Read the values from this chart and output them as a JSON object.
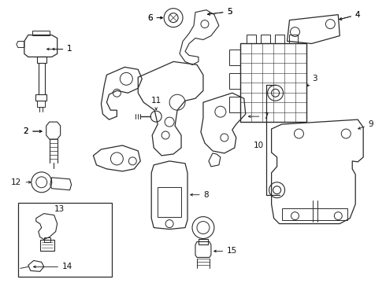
{
  "bg_color": "#ffffff",
  "line_color": "#2a2a2a",
  "label_color": "#111111",
  "label_fontsize": 7.5,
  "fig_width": 4.9,
  "fig_height": 3.6,
  "dpi": 100
}
